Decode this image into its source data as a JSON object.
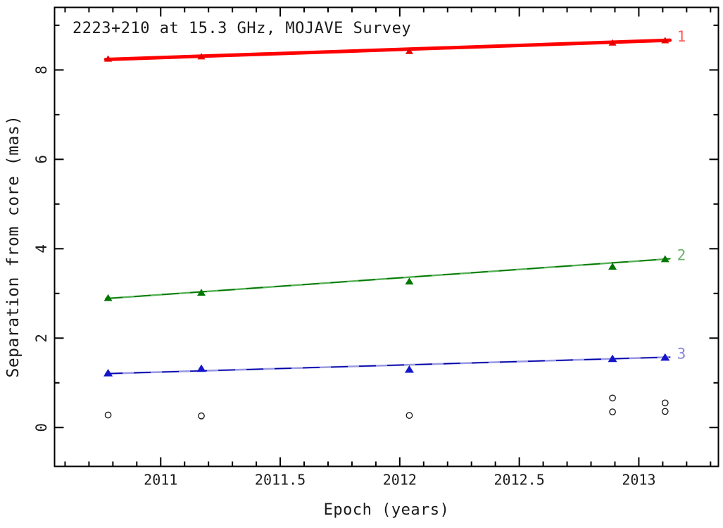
{
  "chart_data": {
    "type": "scatter",
    "title": "2223+210 at 15.3 GHz, MOJAVE Survey",
    "xlabel": "Epoch (years)",
    "ylabel": "Separation from core (mas)",
    "xlim": [
      2010.556,
      2013.333
    ],
    "ylim": [
      -0.87,
      9.4
    ],
    "x_major_ticks": [
      2011,
      2011.5,
      2012,
      2012.5,
      2013
    ],
    "x_tick_labels": [
      "2011",
      "2011.5",
      "2012",
      "2012.5",
      "2013"
    ],
    "x_minor_step": 0.1,
    "y_major_ticks": [
      0,
      2,
      4,
      6,
      8
    ],
    "y_tick_labels": [
      "0",
      "2",
      "4",
      "6",
      "8"
    ],
    "y_minor_step": 1,
    "legend_position": "inline-right-labels",
    "grid": false,
    "epochs": [
      2010.78,
      2011.17,
      2012.04,
      2012.89,
      2013.11
    ],
    "series": [
      {
        "label": "1",
        "name": "component-1",
        "marker": "triangle",
        "marker_color": "#e80000",
        "marker_size": 11,
        "line_color": "#ff0000",
        "line_width": 5,
        "overlay_color": "",
        "label_color": "#ff5c5c",
        "x": [
          2010.78,
          2011.17,
          2012.04,
          2012.89,
          2013.11
        ],
        "y": [
          8.25,
          8.3,
          8.42,
          8.61,
          8.66
        ],
        "fit": {
          "x1": 2010.77,
          "y1": 8.235,
          "x2": 2013.13,
          "y2": 8.665
        }
      },
      {
        "label": "2",
        "name": "component-2",
        "marker": "triangle",
        "marker_color": "#007700",
        "marker_size": 12,
        "line_color": "#58b058",
        "line_width": 2.4,
        "overlay_color": "#007700",
        "label_color": "#6ab06a",
        "x": [
          2010.78,
          2011.17,
          2012.04,
          2012.89,
          2013.11
        ],
        "y": [
          2.9,
          3.02,
          3.27,
          3.6,
          3.77
        ],
        "fit": {
          "x1": 2010.77,
          "y1": 2.885,
          "x2": 2013.13,
          "y2": 3.775
        }
      },
      {
        "label": "3",
        "name": "component-3",
        "marker": "triangle",
        "marker_color": "#1515cc",
        "marker_size": 13,
        "line_color": "#9a9ae2",
        "line_width": 2.6,
        "overlay_color": "#0000a8",
        "label_color": "#8585dd",
        "x": [
          2010.78,
          2011.17,
          2012.04,
          2012.89,
          2013.11
        ],
        "y": [
          1.22,
          1.32,
          1.3,
          1.54,
          1.57
        ],
        "fit": {
          "x1": 2010.77,
          "y1": 1.205,
          "x2": 2013.13,
          "y2": 1.575
        }
      }
    ],
    "unidentified_components": {
      "marker": "open-circle",
      "color": "#111111",
      "points": [
        [
          2010.78,
          0.28
        ],
        [
          2011.17,
          0.26
        ],
        [
          2012.04,
          0.27
        ],
        [
          2012.89,
          0.66
        ],
        [
          2012.89,
          0.35
        ],
        [
          2013.11,
          0.55
        ],
        [
          2013.11,
          0.36
        ]
      ]
    }
  }
}
